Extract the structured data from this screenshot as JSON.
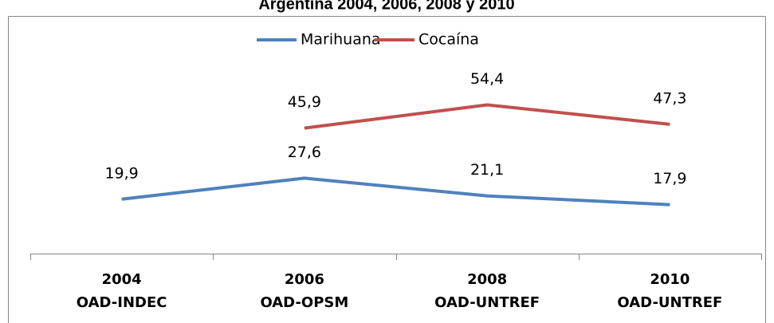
{
  "chart_data": {
    "type": "line",
    "title": "Argentina 2004, 2006, 2008 y 2010",
    "categories": [
      [
        "2004",
        "OAD-INDEC"
      ],
      [
        "2006",
        "OAD-OPSM"
      ],
      [
        "2008",
        "OAD-UNTREF"
      ],
      [
        "2010",
        "OAD-UNTREF"
      ]
    ],
    "series": [
      {
        "name": "Marihuana",
        "color": "#4f81bd",
        "values": [
          19.9,
          27.6,
          21.1,
          17.9
        ],
        "value_labels": [
          "19,9",
          "27,6",
          "21,1",
          "17,9"
        ]
      },
      {
        "name": "Cocaína",
        "color": "#c0504d",
        "values": [
          null,
          45.9,
          54.4,
          47.3
        ],
        "value_labels": [
          null,
          "45,9",
          "54,4",
          "47,3"
        ]
      }
    ],
    "ylim": [
      0,
      84
    ],
    "legend": "top"
  }
}
